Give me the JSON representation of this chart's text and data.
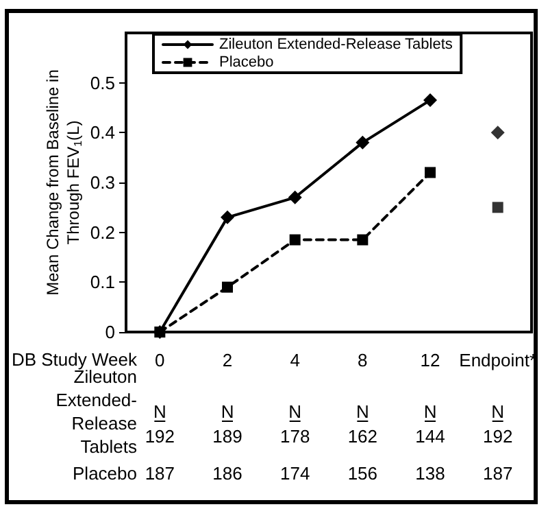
{
  "chart_data": {
    "type": "line",
    "categories": [
      "0",
      "2",
      "4",
      "8",
      "12",
      "Endpoint*"
    ],
    "xlabel": "DB Study Week",
    "ylabel": "Mean Change from Baseline in Through FEV$_{1}$(L)",
    "ylim": [
      0,
      0.6
    ],
    "yticks": [
      0,
      0.1,
      0.2,
      0.3,
      0.4,
      0.5
    ],
    "grid": false,
    "legend": "top",
    "series": [
      {
        "name": "Zileuton Extended-Release Tablets",
        "color": "#000000",
        "marker": "diamond",
        "line_style": "solid",
        "values": [
          0,
          0.23,
          0.27,
          0.38,
          0.465,
          null
        ]
      },
      {
        "name": "Placebo",
        "color": "#000000",
        "marker": "square",
        "line_style": "dashed",
        "values": [
          0,
          0.09,
          0.185,
          0.185,
          0.32,
          null
        ]
      },
      {
        "type": "scatter",
        "color": "#000000",
        "marker": "diamond",
        "x": [
          "Endpoint*"
        ],
        "values": [
          0.4
        ]
      },
      {
        "type": "scatter",
        "color": "#000000",
        "marker": "square",
        "x": [
          "Endpoint*"
        ],
        "values": [
          0.25
        ]
      }
    ],
    "annotations": [
      "Zileuton Extended-Release Tablets",
      "N",
      "N",
      "N",
      "N",
      "N",
      "N",
      "192",
      "189",
      "178",
      "162",
      "144",
      "192",
      "Placebo",
      "187",
      "186",
      "174",
      "156",
      "138",
      "187"
    ]
  }
}
